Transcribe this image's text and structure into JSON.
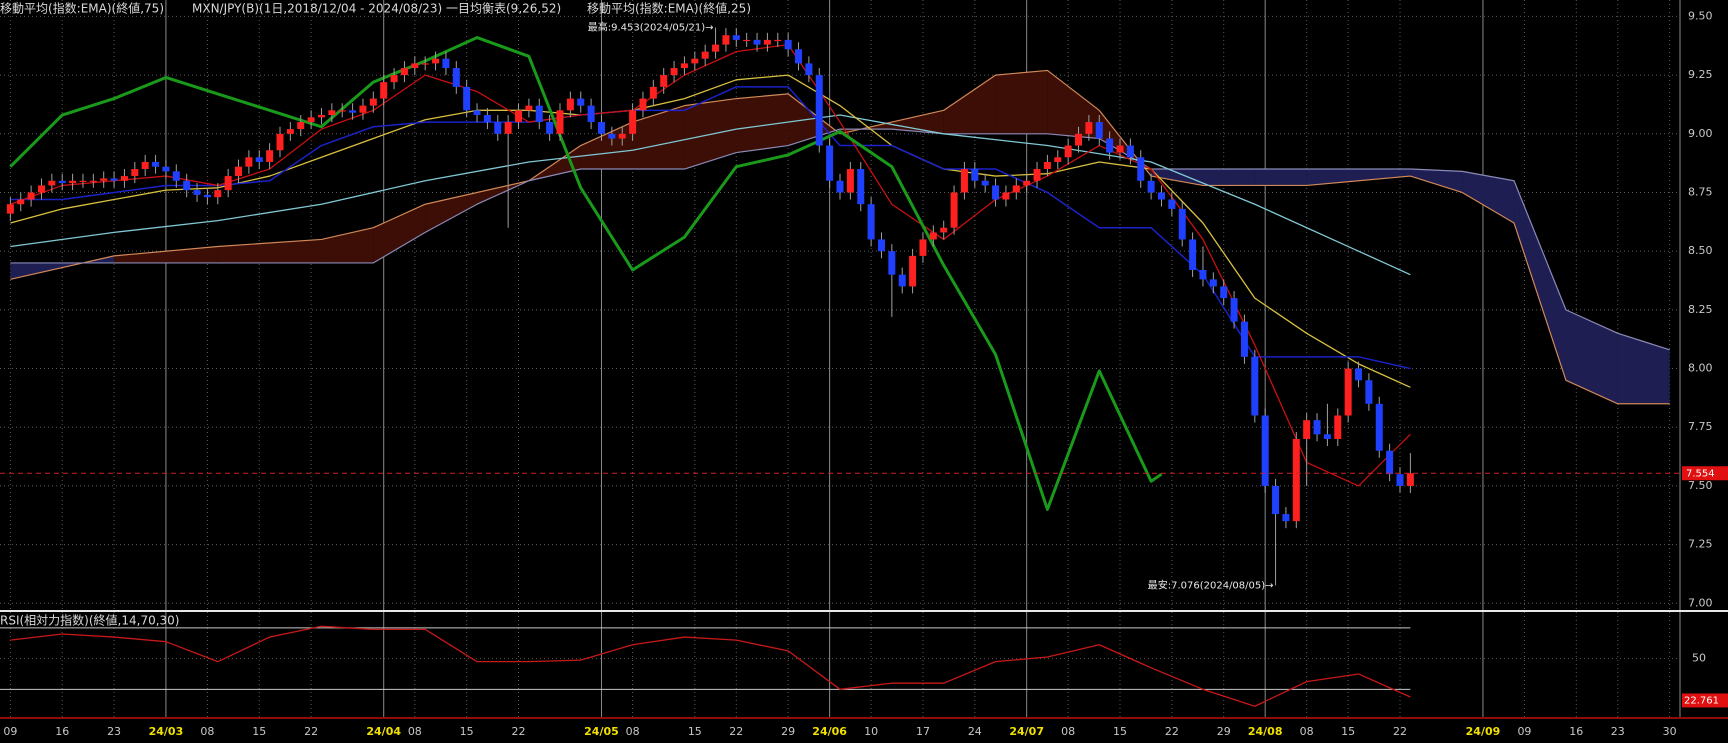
{
  "chart_data": {
    "type": "candlestick",
    "title": "MXN/JPY(B)(1日,2018/12/04 - 2024/08/23)",
    "up_color": "#ff2020",
    "down_color": "#2040ff",
    "wick_color": "#a0a0a0",
    "open": [
      8.66,
      8.7,
      8.72,
      8.75,
      8.78,
      8.8,
      8.79,
      8.8,
      8.8,
      8.8,
      8.81,
      8.8,
      8.82,
      8.85,
      8.88,
      8.86,
      8.84,
      8.8,
      8.76,
      8.74,
      8.73,
      8.76,
      8.82,
      8.86,
      8.9,
      8.88,
      8.93,
      9.0,
      9.02,
      9.05,
      9.07,
      9.08,
      9.1,
      9.1,
      9.09,
      9.12,
      9.15,
      9.22,
      9.25,
      9.28,
      9.3,
      9.3,
      9.32,
      9.28,
      9.2,
      9.1,
      9.08,
      9.05,
      9.0,
      9.05,
      9.1,
      9.12,
      9.05,
      9.0,
      9.1,
      9.15,
      9.12,
      9.05,
      9.0,
      8.98,
      9.0,
      9.1,
      9.15,
      9.2,
      9.25,
      9.28,
      9.3,
      9.32,
      9.35,
      9.38,
      9.42,
      9.4,
      9.4,
      9.38,
      9.4,
      9.4,
      9.36,
      9.3,
      9.25,
      8.95,
      8.8,
      8.75,
      8.85,
      8.7,
      8.55,
      8.5,
      8.4,
      8.35,
      8.48,
      8.55,
      8.58,
      8.6,
      8.75,
      8.85,
      8.8,
      8.78,
      8.72,
      8.75,
      8.78,
      8.8,
      8.85,
      8.88,
      8.9,
      8.95,
      9.0,
      9.05,
      8.98,
      8.92,
      8.95,
      8.9,
      8.8,
      8.75,
      8.72,
      8.68,
      8.55,
      8.42,
      8.38,
      8.35,
      8.3,
      8.2,
      8.05,
      7.8,
      7.5,
      7.38,
      7.35,
      7.7,
      7.78,
      7.72,
      7.7,
      7.8,
      8.0,
      7.95,
      7.85,
      7.65,
      7.55,
      7.5
    ],
    "high": [
      8.73,
      8.75,
      8.78,
      8.81,
      8.83,
      8.83,
      8.83,
      8.83,
      8.83,
      8.84,
      8.84,
      8.85,
      8.88,
      8.91,
      8.91,
      8.89,
      8.87,
      8.83,
      8.79,
      8.77,
      8.79,
      8.85,
      8.89,
      8.93,
      8.93,
      8.96,
      9.03,
      9.05,
      9.08,
      9.1,
      9.11,
      9.13,
      9.13,
      9.13,
      9.15,
      9.18,
      9.25,
      9.28,
      9.31,
      9.33,
      9.33,
      9.35,
      9.35,
      9.31,
      9.23,
      9.13,
      9.11,
      9.08,
      9.08,
      9.13,
      9.15,
      9.15,
      9.08,
      9.13,
      9.18,
      9.18,
      9.15,
      9.08,
      9.03,
      9.03,
      9.13,
      9.18,
      9.23,
      9.28,
      9.31,
      9.33,
      9.35,
      9.38,
      9.453,
      9.45,
      9.45,
      9.43,
      9.43,
      9.43,
      9.43,
      9.43,
      9.39,
      9.33,
      9.28,
      8.98,
      8.83,
      8.88,
      8.88,
      8.73,
      8.58,
      8.53,
      8.43,
      8.51,
      8.58,
      8.61,
      8.63,
      8.78,
      8.88,
      8.88,
      8.83,
      8.81,
      8.78,
      8.81,
      8.83,
      8.88,
      8.91,
      8.93,
      8.98,
      9.03,
      9.08,
      9.08,
      9.01,
      8.98,
      8.98,
      8.93,
      8.83,
      8.78,
      8.75,
      8.71,
      8.58,
      8.52,
      8.41,
      8.38,
      8.33,
      8.23,
      8.08,
      7.83,
      7.53,
      7.41,
      7.73,
      7.81,
      7.81,
      7.85,
      7.83,
      8.03,
      8.03,
      7.98,
      7.88,
      7.68,
      7.58,
      7.64
    ],
    "low": [
      8.63,
      8.67,
      8.69,
      8.72,
      8.75,
      8.76,
      8.76,
      8.77,
      8.77,
      8.77,
      8.77,
      8.77,
      8.79,
      8.82,
      8.83,
      8.81,
      8.77,
      8.73,
      8.71,
      8.7,
      8.7,
      8.73,
      8.79,
      8.83,
      8.85,
      8.85,
      8.9,
      8.97,
      8.99,
      9.02,
      9.04,
      9.05,
      9.07,
      9.06,
      9.06,
      9.09,
      9.12,
      9.19,
      9.22,
      9.25,
      9.27,
      9.27,
      9.25,
      9.17,
      9.07,
      9.05,
      9.02,
      8.97,
      8.6,
      9.02,
      9.07,
      9.02,
      8.97,
      8.97,
      9.07,
      9.09,
      9.02,
      8.97,
      8.95,
      8.95,
      8.97,
      9.07,
      9.12,
      9.17,
      9.22,
      9.25,
      9.27,
      9.29,
      9.32,
      9.35,
      9.37,
      9.37,
      9.35,
      9.35,
      9.37,
      9.33,
      9.27,
      9.22,
      8.92,
      8.77,
      8.72,
      8.72,
      8.67,
      8.52,
      8.47,
      8.22,
      8.32,
      8.32,
      8.45,
      8.52,
      8.55,
      8.57,
      8.72,
      8.77,
      8.75,
      8.69,
      8.69,
      8.72,
      8.75,
      8.77,
      8.82,
      8.85,
      8.87,
      8.92,
      8.97,
      8.95,
      8.89,
      8.89,
      8.87,
      8.77,
      8.72,
      8.69,
      8.65,
      8.52,
      8.39,
      8.35,
      8.32,
      8.27,
      8.17,
      8.02,
      7.77,
      7.47,
      7.076,
      7.32,
      7.32,
      7.5,
      7.69,
      7.67,
      7.67,
      7.77,
      7.92,
      7.82,
      7.62,
      7.52,
      7.47,
      7.47
    ],
    "close": [
      8.7,
      8.72,
      8.75,
      8.78,
      8.8,
      8.79,
      8.8,
      8.8,
      8.8,
      8.81,
      8.8,
      8.82,
      8.85,
      8.88,
      8.86,
      8.84,
      8.8,
      8.76,
      8.74,
      8.73,
      8.76,
      8.82,
      8.86,
      8.9,
      8.88,
      8.93,
      9.0,
      9.02,
      9.05,
      9.07,
      9.08,
      9.1,
      9.1,
      9.09,
      9.12,
      9.15,
      9.22,
      9.25,
      9.28,
      9.3,
      9.3,
      9.32,
      9.28,
      9.2,
      9.1,
      9.08,
      9.05,
      9.0,
      9.05,
      9.1,
      9.12,
      9.05,
      9.0,
      9.1,
      9.15,
      9.12,
      9.05,
      9.0,
      8.98,
      9.0,
      9.1,
      9.15,
      9.2,
      9.25,
      9.28,
      9.3,
      9.32,
      9.35,
      9.38,
      9.42,
      9.4,
      9.4,
      9.38,
      9.4,
      9.4,
      9.36,
      9.3,
      9.25,
      8.95,
      8.8,
      8.75,
      8.85,
      8.7,
      8.55,
      8.5,
      8.4,
      8.35,
      8.48,
      8.55,
      8.58,
      8.6,
      8.75,
      8.85,
      8.8,
      8.78,
      8.72,
      8.75,
      8.78,
      8.8,
      8.85,
      8.88,
      8.9,
      8.95,
      9.0,
      9.05,
      8.98,
      8.92,
      8.95,
      8.9,
      8.8,
      8.75,
      8.72,
      8.68,
      8.55,
      8.42,
      8.38,
      8.35,
      8.3,
      8.2,
      8.05,
      7.8,
      7.5,
      7.38,
      7.35,
      7.7,
      7.78,
      7.72,
      7.7,
      7.8,
      8.0,
      7.95,
      7.85,
      7.65,
      7.55,
      7.5,
      7.554
    ],
    "current_price": 7.554,
    "series": [
      {
        "name": "移動平均(指数:EMA)(終値,75)",
        "color": "#80c8d4",
        "x": [
          0,
          10,
          20,
          30,
          40,
          50,
          60,
          70,
          80,
          90,
          100,
          110,
          120,
          130,
          135
        ],
        "values": [
          8.52,
          8.58,
          8.63,
          8.7,
          8.8,
          8.88,
          8.93,
          9.02,
          9.08,
          9.0,
          8.95,
          8.88,
          8.7,
          8.5,
          8.4
        ]
      },
      {
        "name": "移動平均(指数:EMA)(終値,25)",
        "color": "#d8c040",
        "x": [
          0,
          5,
          10,
          15,
          20,
          25,
          30,
          35,
          40,
          45,
          50,
          55,
          60,
          65,
          70,
          75,
          80,
          85,
          90,
          95,
          100,
          105,
          110,
          115,
          120,
          125,
          130,
          135
        ],
        "values": [
          8.62,
          8.68,
          8.72,
          8.76,
          8.77,
          8.82,
          8.9,
          8.98,
          9.06,
          9.1,
          9.1,
          9.08,
          9.1,
          9.15,
          9.23,
          9.25,
          9.12,
          8.95,
          8.85,
          8.82,
          8.83,
          8.88,
          8.85,
          8.62,
          8.3,
          8.15,
          8.02,
          7.92
        ]
      }
    ],
    "ichimoku": {
      "name": "一目均衡表(9,26,52)",
      "tenkan": {
        "color": "#c81010",
        "x": [
          0,
          5,
          10,
          15,
          20,
          25,
          30,
          35,
          40,
          45,
          50,
          55,
          60,
          65,
          70,
          75,
          80,
          85,
          90,
          95,
          100,
          105,
          110,
          115,
          120,
          125,
          130,
          135
        ],
        "values": [
          8.7,
          8.78,
          8.8,
          8.82,
          8.78,
          8.85,
          9.02,
          9.1,
          9.25,
          9.18,
          9.05,
          9.08,
          9.1,
          9.25,
          9.35,
          9.38,
          9.05,
          8.7,
          8.55,
          8.72,
          8.82,
          8.95,
          8.85,
          8.55,
          8.1,
          7.6,
          7.5,
          7.72
        ]
      },
      "kijun": {
        "color": "#1a22c8",
        "x": [
          0,
          5,
          10,
          15,
          20,
          25,
          30,
          35,
          40,
          45,
          50,
          55,
          60,
          65,
          70,
          75,
          80,
          85,
          90,
          95,
          100,
          105,
          110,
          115,
          120,
          125,
          130,
          135
        ],
        "values": [
          8.72,
          8.72,
          8.75,
          8.78,
          8.78,
          8.8,
          8.95,
          9.03,
          9.05,
          9.05,
          9.05,
          9.08,
          9.1,
          9.1,
          9.2,
          9.2,
          8.95,
          8.95,
          8.85,
          8.85,
          8.75,
          8.6,
          8.6,
          8.4,
          8.05,
          8.05,
          8.05,
          8.0
        ]
      },
      "chikou": {
        "color": "#1a9a1a",
        "x": [
          0,
          5,
          10,
          15,
          20,
          25,
          30,
          35,
          40,
          45,
          50,
          55,
          60,
          65,
          70,
          75,
          80,
          85,
          90,
          95,
          100,
          105,
          110,
          111
        ],
        "values": [
          8.86,
          9.08,
          9.15,
          9.24,
          9.17,
          9.1,
          9.03,
          9.22,
          9.31,
          9.41,
          9.33,
          8.77,
          8.42,
          8.56,
          8.86,
          8.91,
          9.01,
          8.86,
          8.44,
          8.06,
          7.4,
          7.99,
          7.52,
          7.55
        ]
      },
      "span_x": [
        0,
        10,
        20,
        30,
        35,
        40,
        45,
        50,
        55,
        60,
        65,
        70,
        75,
        80,
        85,
        90,
        95,
        100,
        105,
        110,
        115,
        120,
        125,
        130,
        135,
        140,
        145,
        150,
        155,
        160
      ],
      "span_a": {
        "color": "#d08858",
        "values": [
          8.38,
          8.48,
          8.52,
          8.55,
          8.6,
          8.7,
          8.75,
          8.8,
          8.95,
          9.05,
          9.12,
          9.15,
          9.17,
          9.0,
          9.05,
          9.1,
          9.25,
          9.27,
          9.1,
          8.82,
          8.78,
          8.78,
          8.78,
          8.8,
          8.82,
          8.75,
          8.62,
          7.95,
          7.85,
          7.85
        ]
      },
      "span_b": {
        "color": "#8a8ab8",
        "values": [
          8.45,
          8.45,
          8.45,
          8.45,
          8.45,
          8.58,
          8.7,
          8.8,
          8.85,
          8.85,
          8.85,
          8.92,
          8.95,
          9.02,
          9.02,
          9.0,
          9.0,
          9.0,
          8.98,
          8.85,
          8.85,
          8.85,
          8.85,
          8.85,
          8.85,
          8.84,
          8.8,
          8.25,
          8.15,
          8.08
        ]
      },
      "cloud_up_color": "#3c0e06",
      "cloud_down_color": "#1e1e52"
    },
    "annotations": [
      {
        "text": "最高:9.453(2024/05/21)→",
        "x": 68,
        "y": 9.453
      },
      {
        "text": "最安:7.076(2024/08/05)→",
        "x": 122,
        "y": 7.076
      }
    ],
    "xlim": [
      -1,
      161
    ],
    "ylim": [
      6.98,
      9.57
    ],
    "grid": true,
    "xticks": [
      {
        "value": 0,
        "label": "09"
      },
      {
        "value": 5,
        "label": "16"
      },
      {
        "value": 10,
        "label": "23"
      },
      {
        "value": 15,
        "label": "24/03"
      },
      {
        "value": 19,
        "label": "08"
      },
      {
        "value": 24,
        "label": "15"
      },
      {
        "value": 29,
        "label": "22"
      },
      {
        "value": 36,
        "label": "24/04"
      },
      {
        "value": 39,
        "label": "08"
      },
      {
        "value": 44,
        "label": "15"
      },
      {
        "value": 49,
        "label": "22"
      },
      {
        "value": 57,
        "label": "24/05"
      },
      {
        "value": 60,
        "label": "08"
      },
      {
        "value": 66,
        "label": "15"
      },
      {
        "value": 70,
        "label": "22"
      },
      {
        "value": 75,
        "label": "29"
      },
      {
        "value": 79,
        "label": "24/06"
      },
      {
        "value": 83,
        "label": "10"
      },
      {
        "value": 88,
        "label": "17"
      },
      {
        "value": 93,
        "label": "24"
      },
      {
        "value": 98,
        "label": "24/07"
      },
      {
        "value": 102,
        "label": "08"
      },
      {
        "value": 107,
        "label": "15"
      },
      {
        "value": 112,
        "label": "22"
      },
      {
        "value": 117,
        "label": "29"
      },
      {
        "value": 121,
        "label": "24/08"
      },
      {
        "value": 125,
        "label": "08"
      },
      {
        "value": 129,
        "label": "15"
      },
      {
        "value": 134,
        "label": "22"
      },
      {
        "value": 142,
        "label": "24/09"
      },
      {
        "value": 146,
        "label": "09"
      },
      {
        "value": 151,
        "label": "16"
      },
      {
        "value": 155,
        "label": "23"
      },
      {
        "value": 160,
        "label": "30"
      }
    ],
    "yticks": [
      {
        "value": 7.0,
        "label": "7.00"
      },
      7.25,
      {
        "value": 7.5,
        "label": "7.50"
      },
      7.75,
      {
        "value": 8.0,
        "label": "8.00"
      },
      8.25,
      {
        "value": 8.5,
        "label": "8.50"
      },
      8.75,
      {
        "value": 9.0,
        "label": "9.00"
      },
      9.25,
      {
        "value": 9.5,
        "label": "9.50"
      }
    ],
    "rsi": {
      "title": "RSI(相対力指数)(終値,14,70,30)",
      "color": "#c81818",
      "x": [
        0,
        5,
        10,
        15,
        20,
        25,
        30,
        35,
        40,
        45,
        50,
        55,
        60,
        65,
        70,
        75,
        80,
        85,
        90,
        95,
        100,
        105,
        110,
        115,
        120,
        125,
        130,
        135
      ],
      "values": [
        62,
        66,
        64,
        61,
        48,
        64,
        71,
        69,
        69,
        48,
        48,
        49,
        59,
        64,
        62,
        55,
        30,
        34,
        34,
        48,
        51,
        59,
        44,
        30,
        19,
        35,
        40,
        25
      ],
      "ylim": [
        12,
        79
      ],
      "yticks": [
        50
      ],
      "levels": [
        70,
        30
      ],
      "current_value": 22.761
    }
  }
}
